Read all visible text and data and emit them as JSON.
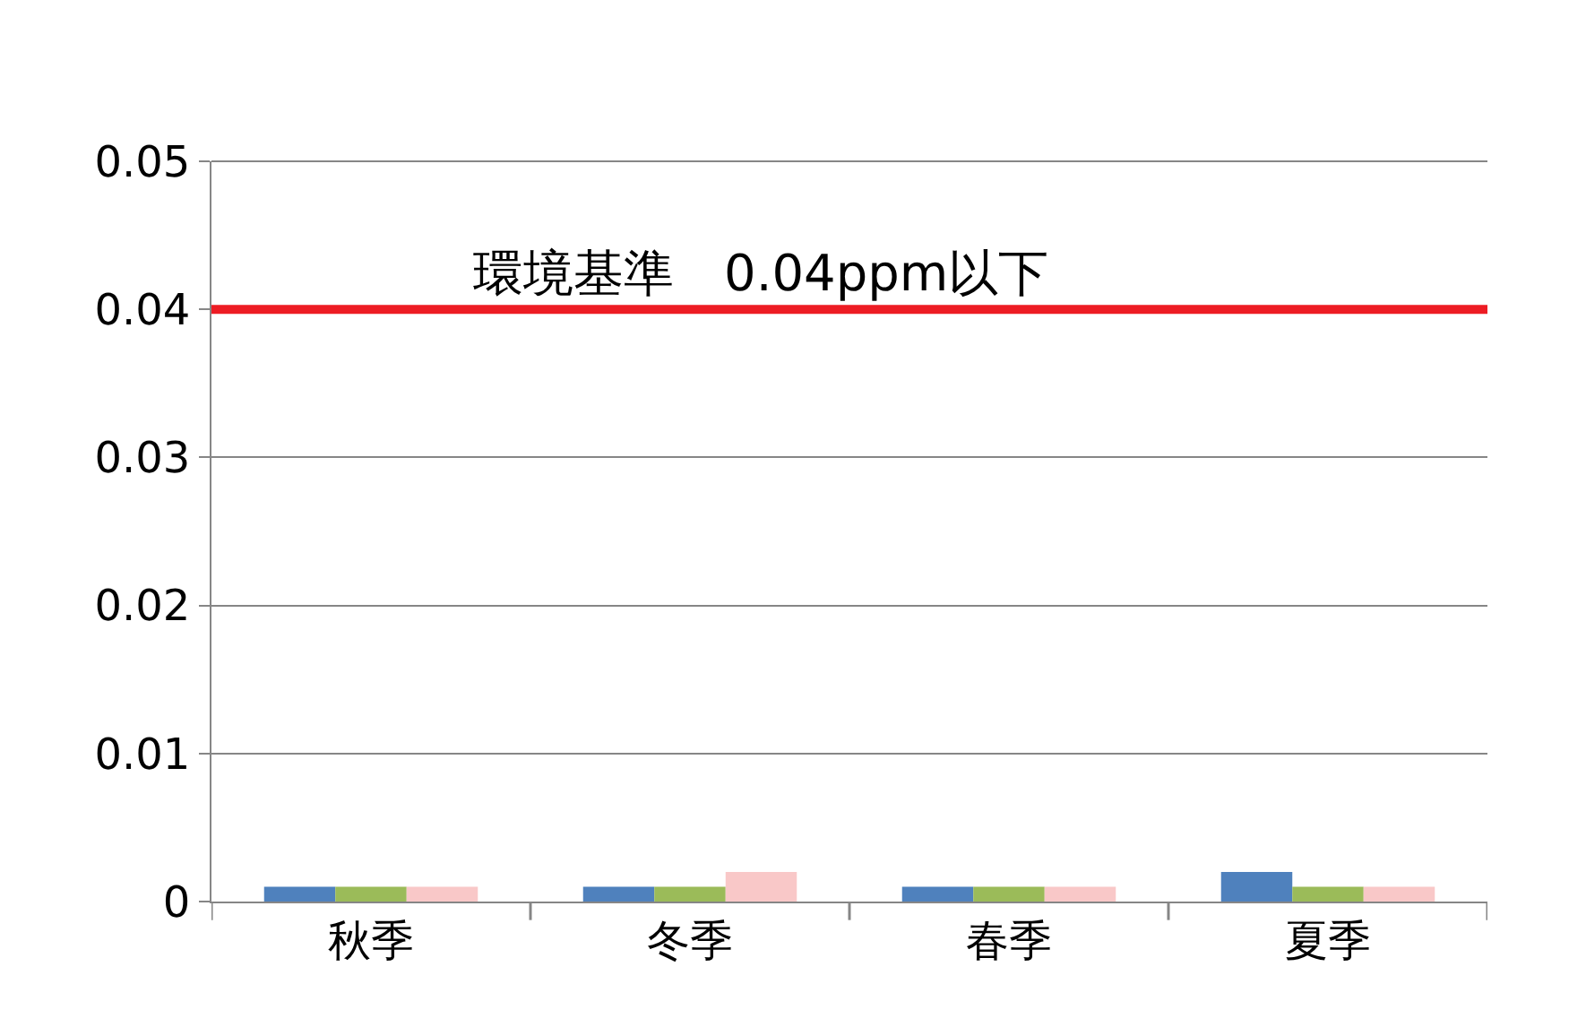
{
  "chart_data": {
    "type": "bar",
    "categories": [
      "秋季",
      "冬季",
      "春季",
      "夏季"
    ],
    "series": [
      {
        "color": "#4f81bd",
        "values": [
          0.001,
          0.001,
          0.001,
          0.002
        ]
      },
      {
        "color": "#9bbb59",
        "values": [
          0.001,
          0.001,
          0.001,
          0.001
        ]
      },
      {
        "color": "#f9c8c8",
        "values": [
          0.001,
          0.002,
          0.001,
          0.001
        ]
      }
    ],
    "ylim": [
      0,
      0.05
    ],
    "yticks": [
      0,
      0.01,
      0.02,
      0.03,
      0.04,
      0.05
    ],
    "grid": "y",
    "ref_lines": [
      {
        "axis": "y",
        "value": 0.04,
        "label": "環境基準　0.04ppm以下",
        "color": "#ed1c24"
      }
    ]
  }
}
